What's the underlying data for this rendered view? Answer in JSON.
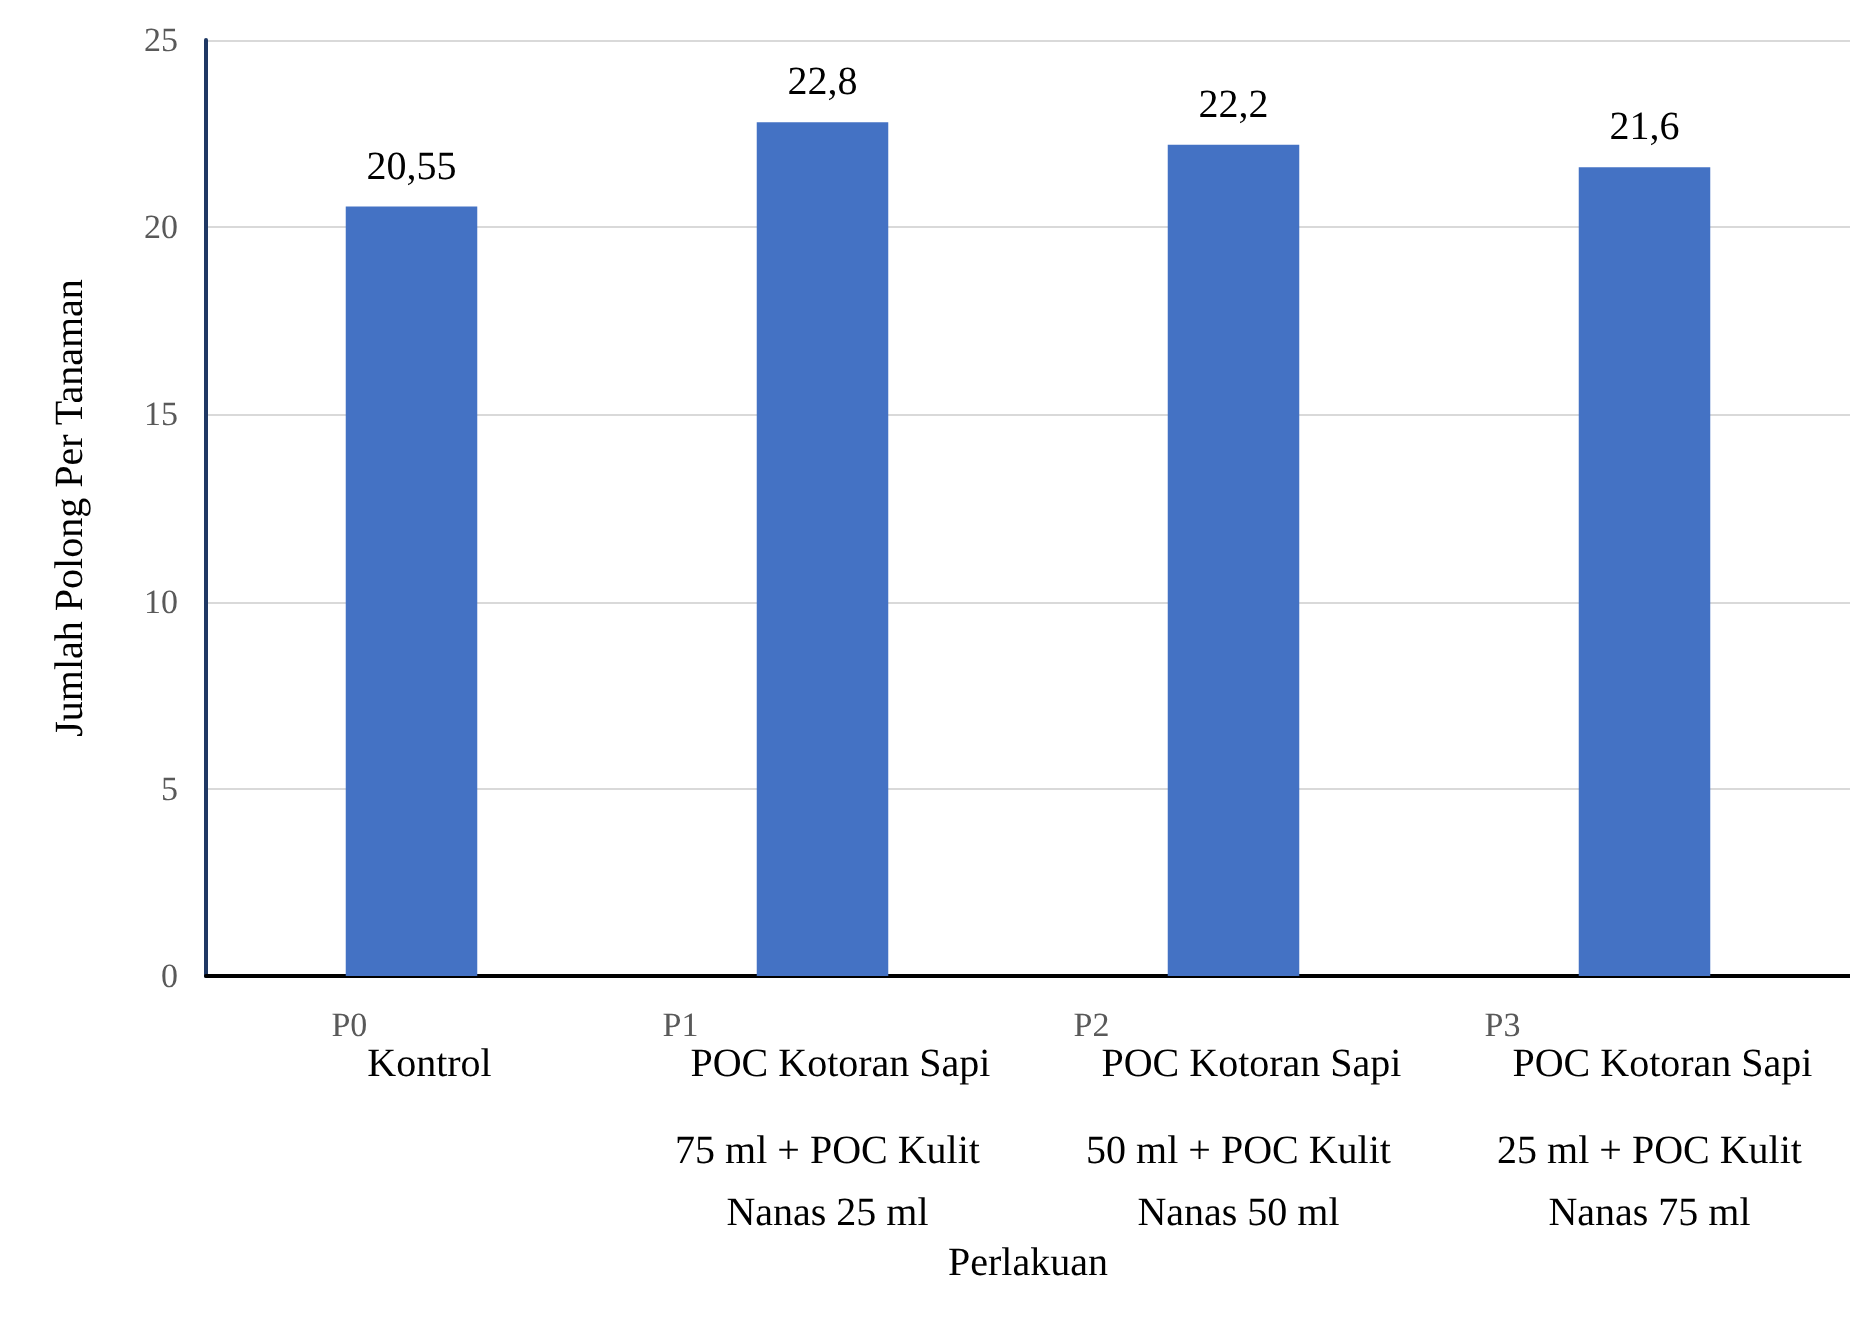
{
  "chart_data": {
    "type": "bar",
    "xlabel": "Perlakuan",
    "ylabel": "Jumlah Polong Per Tanaman",
    "categories": [
      "P0",
      "P1",
      "P2",
      "P3"
    ],
    "values": [
      20.55,
      22.8,
      22.2,
      21.6
    ],
    "value_labels": [
      "20,55",
      "22,8",
      "22,2",
      "21,6"
    ],
    "color": "#4472c4",
    "ylim": [
      0,
      25
    ],
    "yticks": [
      0,
      5,
      10,
      15,
      20,
      25
    ],
    "grid": "y",
    "annotations": [
      "Kontrol",
      "POC Kotoran Sapi 75 ml + POC Kulit Nanas 25 ml",
      "POC Kotoran Sapi 50 ml + POC Kulit Nanas 50 ml",
      "POC Kotoran Sapi 25 ml + POC Kulit Nanas 75 ml"
    ]
  }
}
